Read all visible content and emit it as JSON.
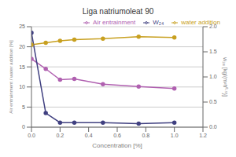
{
  "chart_data": {
    "type": "line",
    "title": "Liga natriumoleat 90",
    "xlabel": "Concentration [%]",
    "ylabel": "Air entrainment / water addition [%]",
    "y2label": "w₂₄ [kg/(m²h⁰·⁵)]",
    "x": [
      0,
      0.1,
      0.2,
      0.3,
      0.5,
      0.75,
      1.0
    ],
    "xlim": [
      0,
      1.2
    ],
    "xticks": [
      {
        "value": 0,
        "label": "0.0"
      },
      0.2,
      0.4,
      0.6,
      0.8,
      {
        "value": 1,
        "label": "1.0"
      },
      1.2
    ],
    "ylim": [
      0,
      25
    ],
    "yticks": [
      0,
      5,
      10,
      15,
      20,
      25
    ],
    "y2lim": [
      0,
      2
    ],
    "y2ticks": [
      {
        "value": 0,
        "label": "0.0"
      },
      0.5,
      {
        "value": 1,
        "label": "1.0"
      },
      1.5,
      {
        "value": 2,
        "label": "2.0"
      }
    ],
    "grid": true,
    "legend": "upper right",
    "marker": "circle",
    "series": [
      {
        "name": "Air entrainment",
        "color": "#b060b0",
        "values": [
          17.0,
          14.5,
          11.8,
          12.0,
          10.7,
          10.1,
          9.6
        ]
      },
      {
        "name": "water addition",
        "color": "#c8a020",
        "values": [
          20.5,
          21.0,
          21.5,
          21.8,
          22.0,
          22.5,
          22.3
        ]
      },
      {
        "name": "W₂₄",
        "color": "#404080",
        "values": [
          1.88,
          0.28,
          0.09,
          0.09,
          0.09,
          0.07,
          0.09
        ],
        "axis": "y2"
      }
    ]
  }
}
